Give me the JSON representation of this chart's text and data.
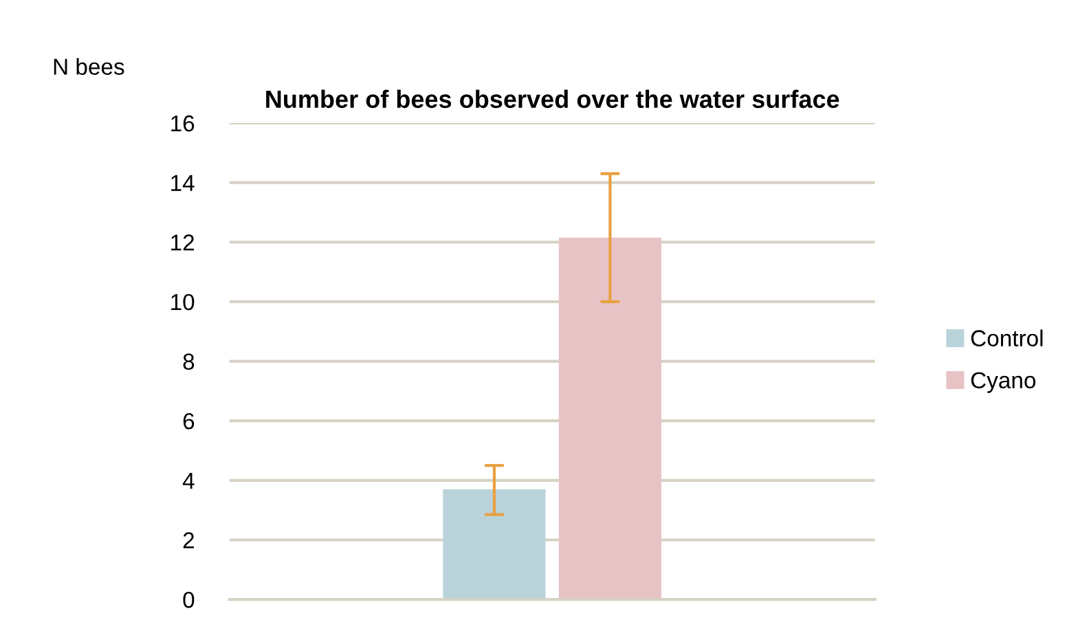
{
  "chart_data": {
    "type": "bar",
    "title": "Number of bees observed over the water surface",
    "ylabel": "N bees",
    "categories": [
      null
    ],
    "series": [
      {
        "name": "Control",
        "color": "#bad3db",
        "values": [
          3.7
        ],
        "errors": [
          [
            2.85,
            4.5
          ]
        ]
      },
      {
        "name": "Cyano",
        "color": "#e7c3c6",
        "values": [
          12.15
        ],
        "errors": [
          [
            10.0,
            14.3
          ]
        ]
      }
    ],
    "ylim": [
      0,
      16
    ],
    "yticks": [
      0,
      2,
      4,
      6,
      8,
      10,
      12,
      14,
      16
    ],
    "grid": "y",
    "legend": "right"
  }
}
